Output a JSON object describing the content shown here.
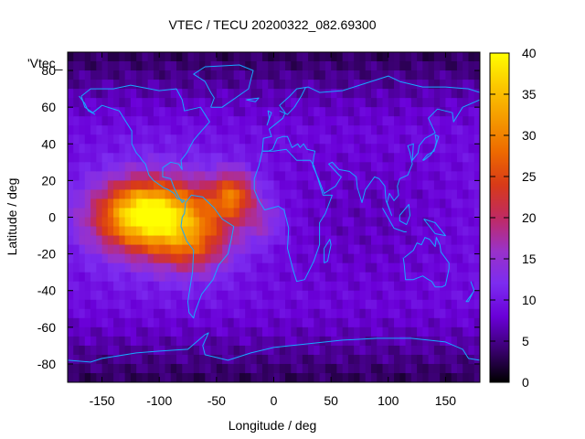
{
  "chart_data": {
    "type": "heatmap",
    "title": "VTEC / TECU 20200322_082.69300",
    "xlabel": "Longitude / deg",
    "ylabel": "Latitude / deg",
    "legend_label": "'Vtec_",
    "xlim": [
      -180,
      180
    ],
    "ylim": [
      -90,
      90
    ],
    "x_ticks": [
      -150,
      -100,
      -50,
      0,
      50,
      100,
      150
    ],
    "y_ticks": [
      -80,
      -60,
      -40,
      -20,
      0,
      20,
      40,
      60,
      80
    ],
    "colorbar": {
      "range": [
        0,
        40
      ],
      "ticks": [
        0,
        5,
        10,
        15,
        20,
        25,
        30,
        35,
        40
      ],
      "palette": [
        "#000000",
        "#3a0070",
        "#6a00d8",
        "#7c2cf0",
        "#9a32c8",
        "#c02a62",
        "#d83a18",
        "#ee6a00",
        "#f59a00",
        "#fbc800",
        "#ffff00"
      ]
    },
    "features": [
      {
        "description": "peak",
        "lon": -100,
        "lat": 0,
        "vtec": 38
      },
      {
        "description": "secondary maximum",
        "lon": -35,
        "lat": 12,
        "vtec": 25
      },
      {
        "description": "background mid-latitudes",
        "vtec": 9
      },
      {
        "description": "polar minimum",
        "vtec": 2
      }
    ]
  }
}
